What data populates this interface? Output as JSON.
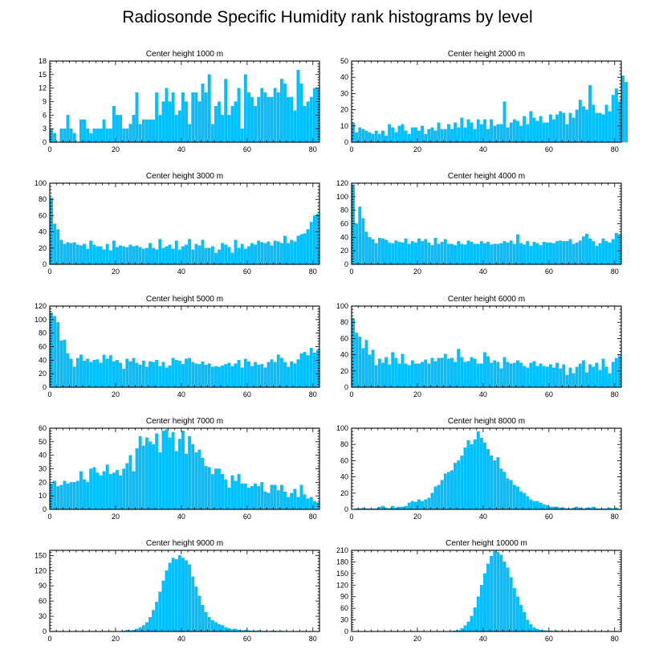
{
  "title": "Radiosonde Specific Humidity rank histograms by level",
  "colors": {
    "bar": "#00c0ff",
    "bar_edge": "#00a4e0",
    "axis": "#000000"
  },
  "chart_data": [
    {
      "type": "bar",
      "title": "Center height 1000 m",
      "xlim": [
        0,
        82
      ],
      "ylim": [
        0,
        18
      ],
      "xticks": [
        0,
        20,
        40,
        60,
        80
      ],
      "yticks": [
        0,
        3,
        6,
        9,
        12,
        15,
        18
      ],
      "values": [
        3,
        2,
        0,
        3,
        3,
        6,
        3,
        2,
        0,
        5,
        5,
        3,
        2,
        3,
        3,
        3,
        5,
        3,
        3,
        8,
        6,
        6,
        3,
        3,
        4,
        6,
        11,
        4,
        5,
        5,
        5,
        5,
        11,
        6,
        9,
        12,
        9,
        11,
        6,
        7,
        11,
        9,
        4,
        11,
        11,
        9,
        13,
        11,
        15,
        4,
        8,
        9,
        6,
        14,
        6,
        8,
        9,
        12,
        3,
        15,
        11,
        10,
        8,
        10,
        12,
        11,
        10,
        10,
        12,
        11,
        14,
        13,
        10,
        10,
        7,
        16,
        13,
        8,
        9,
        10,
        12,
        12
      ]
    },
    {
      "type": "bar",
      "title": "Center height 2000 m",
      "xlim": [
        0,
        82
      ],
      "ylim": [
        0,
        50
      ],
      "xticks": [
        0,
        20,
        40,
        60,
        80
      ],
      "yticks": [
        0,
        10,
        20,
        30,
        40,
        50
      ],
      "values": [
        12,
        6,
        9,
        8,
        7,
        6,
        5,
        7,
        5,
        7,
        4,
        11,
        9,
        6,
        10,
        11,
        7,
        5,
        9,
        9,
        7,
        10,
        5,
        8,
        9,
        7,
        12,
        8,
        8,
        11,
        8,
        12,
        9,
        15,
        9,
        14,
        12,
        8,
        14,
        11,
        14,
        8,
        14,
        10,
        11,
        11,
        25,
        9,
        12,
        14,
        13,
        10,
        16,
        11,
        19,
        15,
        13,
        16,
        12,
        12,
        17,
        14,
        17,
        19,
        18,
        11,
        18,
        15,
        20,
        26,
        22,
        20,
        35,
        23,
        18,
        18,
        17,
        23,
        19,
        29,
        33,
        25,
        41,
        37
      ]
    },
    {
      "type": "bar",
      "title": "Center height 3000 m",
      "xlim": [
        0,
        82
      ],
      "ylim": [
        0,
        100
      ],
      "xticks": [
        0,
        20,
        40,
        60,
        80
      ],
      "yticks": [
        0,
        20,
        40,
        60,
        80,
        100
      ],
      "values": [
        82,
        50,
        43,
        30,
        25,
        27,
        26,
        27,
        24,
        23,
        25,
        19,
        29,
        24,
        22,
        22,
        18,
        25,
        17,
        29,
        21,
        23,
        22,
        21,
        24,
        22,
        23,
        21,
        19,
        20,
        26,
        20,
        18,
        31,
        20,
        22,
        24,
        19,
        29,
        18,
        22,
        24,
        31,
        18,
        25,
        23,
        30,
        20,
        20,
        22,
        14,
        18,
        26,
        24,
        21,
        14,
        30,
        20,
        25,
        19,
        22,
        26,
        24,
        29,
        27,
        26,
        28,
        23,
        29,
        28,
        26,
        35,
        26,
        30,
        28,
        35,
        37,
        38,
        43,
        52,
        60,
        62
      ]
    },
    {
      "type": "bar",
      "title": "Center height 4000 m",
      "xlim": [
        0,
        82
      ],
      "ylim": [
        0,
        120
      ],
      "xticks": [
        0,
        20,
        40,
        60,
        80
      ],
      "yticks": [
        0,
        20,
        40,
        60,
        80,
        100,
        120
      ],
      "values": [
        118,
        60,
        85,
        68,
        48,
        40,
        37,
        31,
        39,
        38,
        36,
        32,
        31,
        35,
        33,
        32,
        38,
        30,
        34,
        32,
        38,
        34,
        37,
        32,
        28,
        39,
        30,
        33,
        37,
        30,
        30,
        28,
        34,
        30,
        29,
        35,
        33,
        30,
        30,
        34,
        31,
        33,
        29,
        30,
        30,
        31,
        34,
        32,
        35,
        30,
        44,
        31,
        29,
        34,
        27,
        33,
        31,
        28,
        33,
        32,
        32,
        31,
        34,
        35,
        34,
        34,
        37,
        30,
        32,
        35,
        41,
        45,
        38,
        34,
        27,
        31,
        38,
        34,
        32,
        37,
        46,
        44
      ]
    },
    {
      "type": "bar",
      "title": "Center height 5000 m",
      "xlim": [
        0,
        82
      ],
      "ylim": [
        0,
        120
      ],
      "xticks": [
        0,
        20,
        40,
        60,
        80
      ],
      "yticks": [
        0,
        20,
        40,
        60,
        80,
        100,
        120
      ],
      "values": [
        110,
        105,
        96,
        69,
        70,
        50,
        42,
        30,
        43,
        48,
        39,
        42,
        37,
        40,
        41,
        36,
        48,
        42,
        47,
        38,
        40,
        36,
        27,
        42,
        38,
        43,
        36,
        33,
        39,
        30,
        38,
        37,
        40,
        31,
        37,
        29,
        32,
        43,
        40,
        39,
        34,
        42,
        43,
        37,
        35,
        34,
        38,
        33,
        35,
        30,
        31,
        30,
        32,
        34,
        36,
        31,
        35,
        40,
        29,
        42,
        38,
        31,
        37,
        33,
        34,
        29,
        37,
        41,
        37,
        48,
        43,
        37,
        30,
        38,
        35,
        41,
        50,
        52,
        47,
        58,
        51,
        55
      ]
    },
    {
      "type": "bar",
      "title": "Center height 6000 m",
      "xlim": [
        0,
        82
      ],
      "ylim": [
        0,
        100
      ],
      "xticks": [
        0,
        20,
        40,
        60,
        80
      ],
      "yticks": [
        0,
        20,
        40,
        60,
        80,
        100
      ],
      "values": [
        85,
        67,
        62,
        48,
        58,
        40,
        46,
        27,
        35,
        30,
        37,
        28,
        43,
        36,
        29,
        41,
        29,
        27,
        33,
        29,
        29,
        31,
        34,
        29,
        36,
        32,
        36,
        36,
        41,
        35,
        36,
        31,
        47,
        37,
        31,
        32,
        37,
        35,
        29,
        29,
        43,
        38,
        30,
        33,
        31,
        23,
        37,
        31,
        29,
        30,
        33,
        30,
        26,
        24,
        30,
        32,
        26,
        29,
        26,
        25,
        28,
        24,
        30,
        23,
        28,
        15,
        24,
        17,
        25,
        29,
        33,
        18,
        28,
        25,
        30,
        21,
        35,
        25,
        17,
        31,
        36,
        39
      ]
    },
    {
      "type": "bar",
      "title": "Center height 7000 m",
      "xlim": [
        0,
        82
      ],
      "ylim": [
        0,
        60
      ],
      "xticks": [
        0,
        20,
        40,
        60,
        80
      ],
      "yticks": [
        0,
        10,
        20,
        30,
        40,
        50,
        60
      ],
      "values": [
        19,
        21,
        17,
        18,
        21,
        19,
        20,
        20,
        21,
        28,
        22,
        20,
        30,
        31,
        27,
        25,
        28,
        33,
        26,
        27,
        29,
        25,
        30,
        34,
        40,
        28,
        45,
        54,
        47,
        53,
        50,
        48,
        56,
        42,
        58,
        59,
        53,
        57,
        43,
        52,
        58,
        41,
        54,
        48,
        42,
        44,
        38,
        32,
        31,
        26,
        30,
        30,
        26,
        22,
        16,
        25,
        21,
        26,
        19,
        19,
        16,
        17,
        19,
        17,
        20,
        13,
        12,
        18,
        18,
        14,
        18,
        13,
        9,
        12,
        15,
        9,
        18,
        11,
        8,
        9,
        6,
        5
      ]
    },
    {
      "type": "bar",
      "title": "Center height 8000 m",
      "xlim": [
        0,
        82
      ],
      "ylim": [
        0,
        100
      ],
      "xticks": [
        0,
        20,
        40,
        60,
        80
      ],
      "yticks": [
        0,
        20,
        40,
        60,
        80,
        100
      ],
      "values": [
        0,
        1,
        1,
        2,
        1,
        1,
        1,
        1,
        3,
        4,
        2,
        1,
        4,
        2,
        3,
        3,
        4,
        8,
        10,
        9,
        12,
        10,
        12,
        14,
        20,
        28,
        30,
        36,
        44,
        46,
        48,
        57,
        60,
        66,
        76,
        85,
        80,
        86,
        96,
        88,
        82,
        74,
        66,
        60,
        64,
        50,
        46,
        38,
        36,
        30,
        28,
        22,
        20,
        16,
        12,
        10,
        10,
        8,
        6,
        5,
        3,
        3,
        3,
        2,
        2,
        1,
        1,
        2,
        3,
        2,
        1,
        2,
        2,
        3,
        1,
        1,
        1,
        1,
        2,
        1,
        2,
        0
      ]
    },
    {
      "type": "bar",
      "title": "Center height 9000 m",
      "xlim": [
        0,
        82
      ],
      "ylim": [
        0,
        160
      ],
      "xticks": [
        0,
        20,
        40,
        60,
        80
      ],
      "yticks": [
        0,
        30,
        60,
        90,
        120,
        150
      ],
      "values": [
        0,
        0,
        0,
        0,
        0,
        0,
        0,
        0,
        0,
        0,
        0,
        0,
        0,
        0,
        0,
        0,
        0,
        0,
        0,
        0,
        0,
        0,
        1,
        3,
        2,
        3,
        5,
        8,
        12,
        18,
        28,
        42,
        58,
        78,
        100,
        120,
        135,
        145,
        142,
        150,
        145,
        140,
        132,
        108,
        88,
        70,
        52,
        38,
        28,
        22,
        18,
        14,
        12,
        8,
        6,
        4,
        5,
        3,
        2,
        3,
        2,
        1,
        1,
        2,
        1,
        1,
        0,
        1,
        1,
        0,
        1,
        0,
        0,
        0,
        0,
        0,
        0,
        0,
        0,
        0,
        0,
        0
      ]
    },
    {
      "type": "bar",
      "title": "Center height 10000 m",
      "xlim": [
        0,
        82
      ],
      "ylim": [
        0,
        210
      ],
      "xticks": [
        0,
        20,
        40,
        60,
        80
      ],
      "yticks": [
        0,
        30,
        60,
        90,
        120,
        150,
        180,
        210
      ],
      "values": [
        0,
        0,
        0,
        0,
        0,
        0,
        0,
        0,
        0,
        0,
        0,
        0,
        0,
        0,
        0,
        0,
        0,
        0,
        0,
        0,
        0,
        0,
        0,
        0,
        0,
        0,
        0,
        0,
        0,
        0,
        1,
        2,
        3,
        8,
        15,
        25,
        40,
        62,
        90,
        120,
        150,
        175,
        195,
        208,
        205,
        198,
        180,
        165,
        140,
        112,
        90,
        68,
        50,
        30,
        18,
        10,
        6,
        4,
        3,
        2,
        2,
        1,
        2,
        1,
        1,
        0,
        1,
        1,
        0,
        1,
        0,
        0,
        1,
        0,
        0,
        0,
        0,
        0,
        0,
        0,
        0,
        0
      ]
    }
  ]
}
